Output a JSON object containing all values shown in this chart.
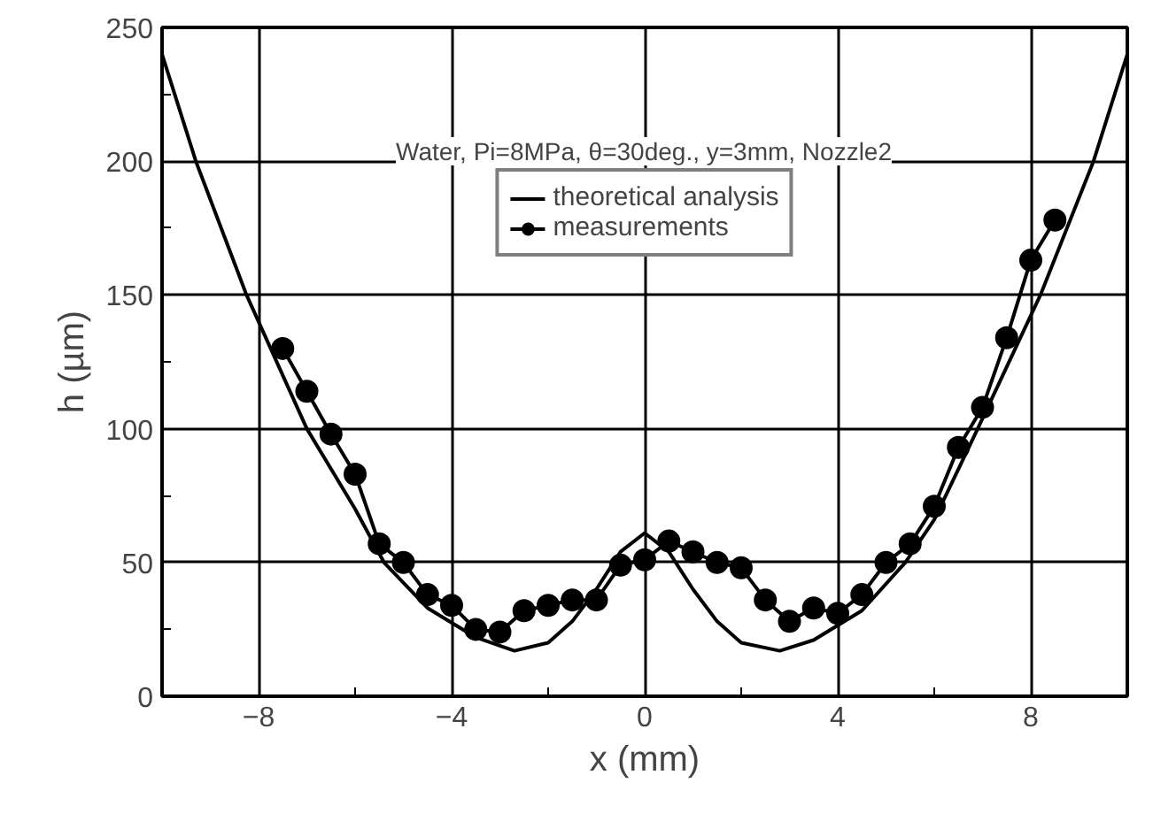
{
  "chart_data": {
    "type": "line",
    "xlabel": "x (mm)",
    "ylabel": "h (µm)",
    "annotations": [
      "Water, Pi=8MPa, θ=30deg., y=3mm, Nozzle2"
    ],
    "xlim": [
      -10,
      10
    ],
    "ylim": [
      0,
      250
    ],
    "xticks": [
      -8,
      -4,
      0,
      4,
      8
    ],
    "yticks": [
      0,
      50,
      100,
      150,
      200,
      250
    ],
    "grid": true,
    "legend": "top",
    "series": [
      {
        "name": "theoretical analysis",
        "color": "#000000",
        "marker": "none",
        "x": [
          -10,
          -9.3,
          -8.25,
          -7,
          -6,
          -5.4,
          -4.5,
          -3.5,
          -2.7,
          -2,
          -1.5,
          -1,
          -0.5,
          0,
          0.5,
          1,
          1.5,
          2,
          2.8,
          3.5,
          4.5,
          5.4,
          6,
          6.9,
          8.2,
          9.3,
          10
        ],
        "values": [
          240,
          200,
          150,
          100,
          70,
          50,
          33,
          22,
          17,
          20,
          28,
          40,
          54,
          61,
          54,
          40,
          28,
          20,
          17,
          21,
          32,
          50,
          66,
          100,
          150,
          200,
          240
        ]
      },
      {
        "name": "measurements",
        "color": "#000000",
        "marker": "circle",
        "x": [
          -7.5,
          -7,
          -6.5,
          -6,
          -5.5,
          -5,
          -4.5,
          -4,
          -3.5,
          -3,
          -2.5,
          -2,
          -1.5,
          -1,
          -0.5,
          0,
          0.5,
          1,
          1.5,
          2,
          2.5,
          3,
          3.5,
          4,
          4.5,
          5,
          5.5,
          6,
          6.5,
          7,
          7.5,
          8,
          8.5
        ],
        "values": [
          130,
          114,
          98,
          83,
          57,
          50,
          38,
          34,
          25,
          24,
          32,
          34,
          36,
          36,
          49,
          51,
          58,
          54,
          50,
          48,
          36,
          28,
          33,
          31,
          38,
          50,
          57,
          71,
          93,
          108,
          134,
          163,
          178
        ]
      }
    ]
  }
}
